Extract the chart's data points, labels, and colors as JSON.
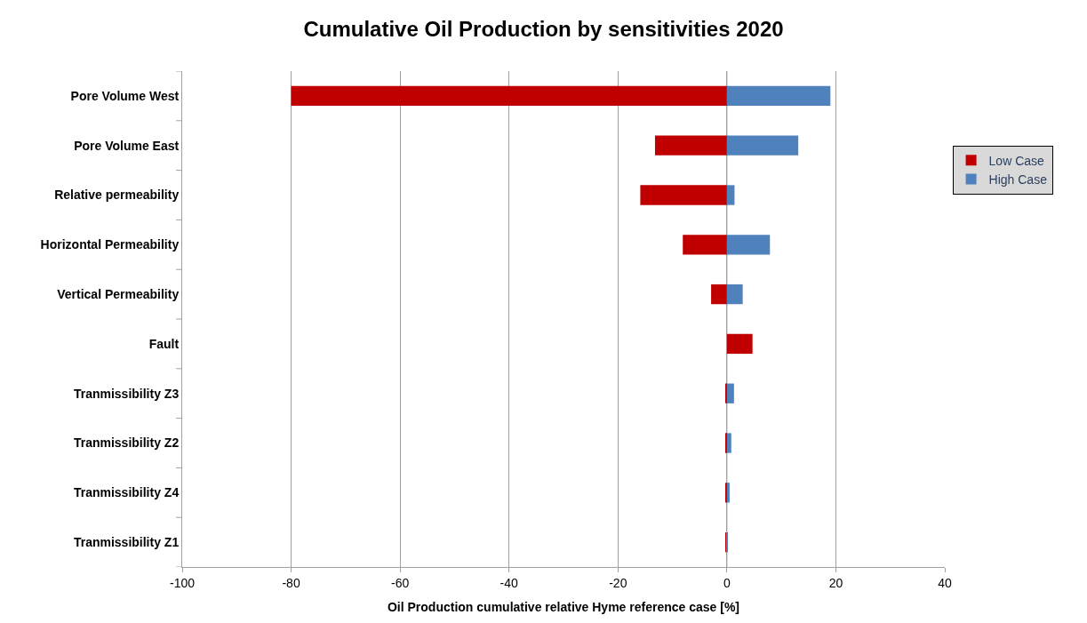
{
  "chart_data": {
    "type": "bar",
    "orientation": "horizontal",
    "title": "Cumulative Oil Production by sensitivities 2020",
    "xlabel": "Oil Production cumulative relative Hyme reference case [%]",
    "categories": [
      "Pore Volume West",
      "Pore Volume East",
      "Relative permeability",
      "Horizontal Permeability",
      "Vertical Permeability",
      "Fault",
      "Tranmissibility Z3",
      "Tranmissibility Z2",
      "Tranmissibility Z4",
      "Tranmissibility Z1"
    ],
    "series": [
      {
        "name": "Low Case",
        "color": "#c00000",
        "values": [
          -80,
          -13.2,
          -15.9,
          -8.1,
          -2.9,
          4.7,
          -0.3,
          -0.3,
          -0.3,
          -0.2
        ]
      },
      {
        "name": "High Case",
        "color": "#4f81bd",
        "values": [
          19,
          13.1,
          1.4,
          7.9,
          2.9,
          null,
          1.3,
          0.8,
          0.5,
          0.1
        ]
      }
    ],
    "xlim": [
      -100,
      40
    ],
    "xticks": [
      -100,
      -80,
      -60,
      -40,
      -20,
      0,
      20,
      40
    ],
    "grid": "x",
    "legend": "right",
    "stacked": true
  }
}
